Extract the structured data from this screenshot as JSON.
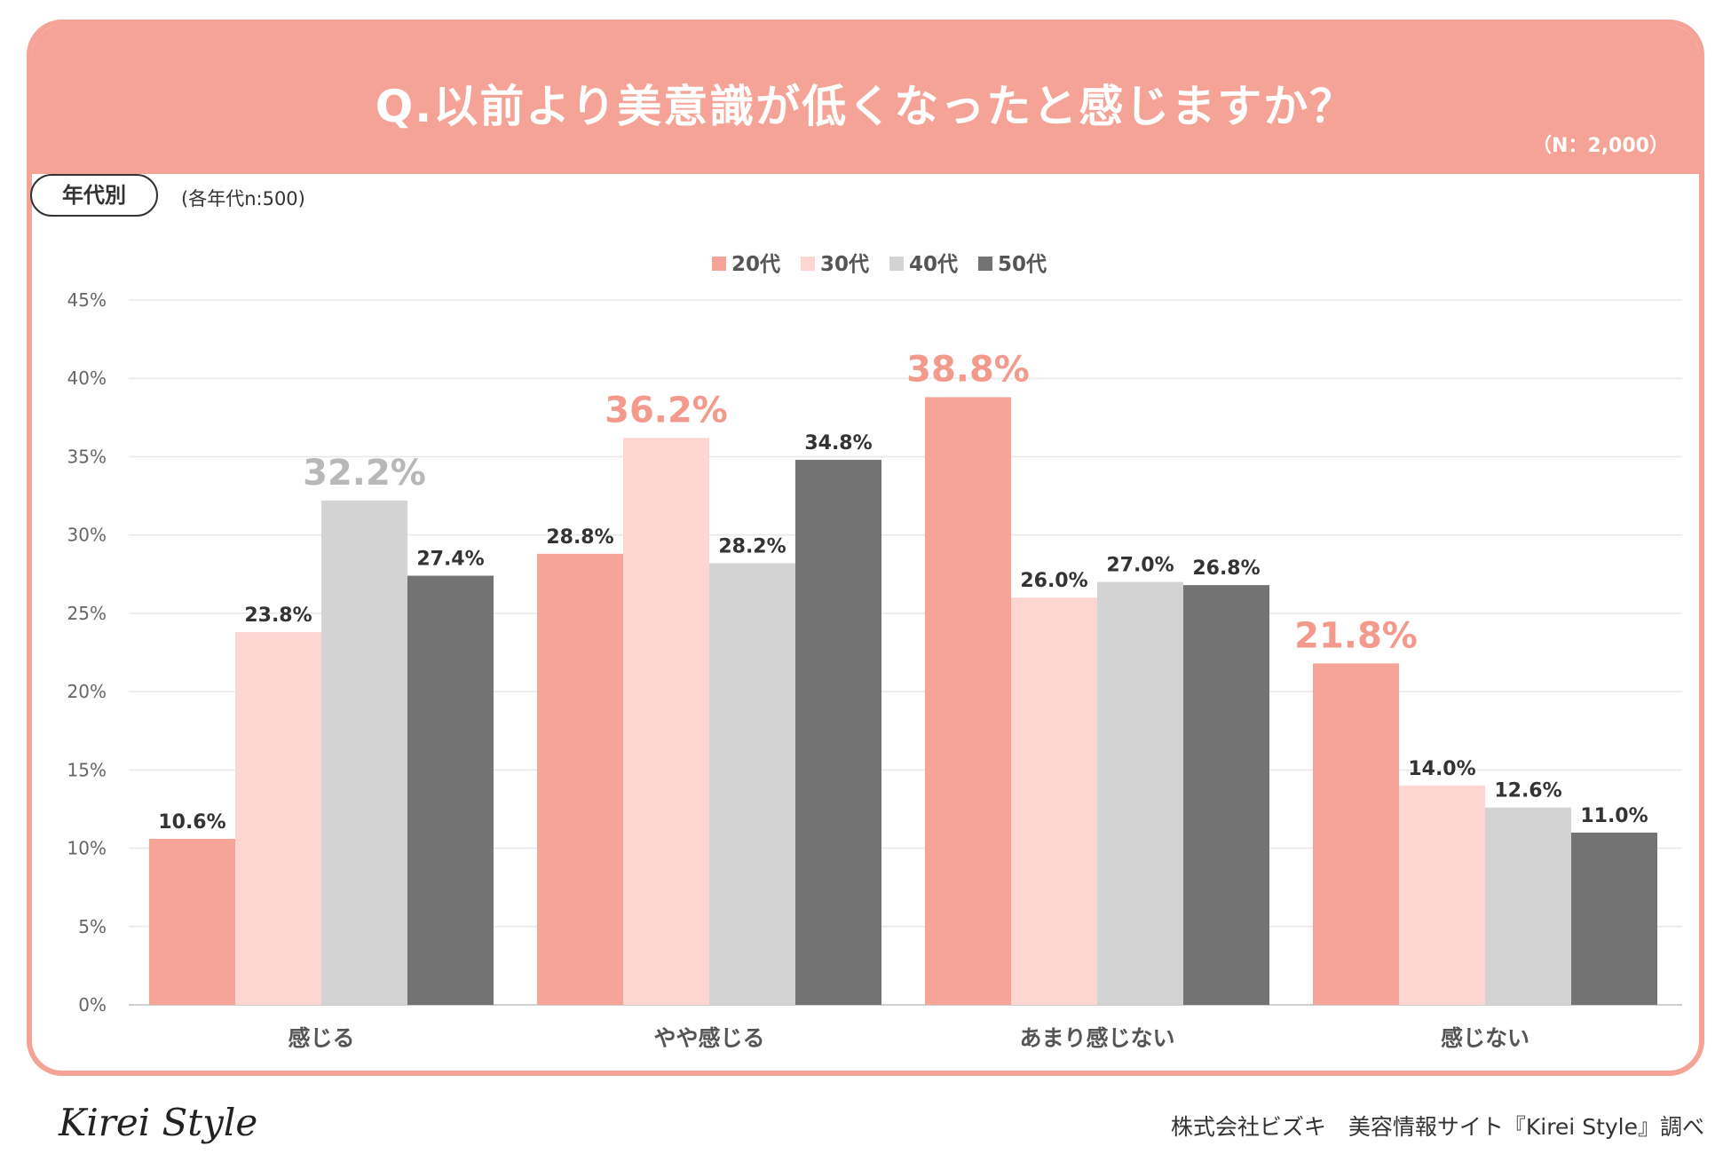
{
  "header": {
    "title": "Q.以前より美意識が低くなったと感じますか？",
    "sample_note": "（N：2,000）"
  },
  "filter": {
    "badge": "年代別",
    "note": "(各年代n:500)"
  },
  "colors": {
    "header_bg": "#f5a396",
    "series": [
      "#f6a498",
      "#fdd5d1",
      "#d3d3d3",
      "#737373"
    ],
    "highlight": [
      "#f39a8d",
      "#f39a8d",
      "#b8b8b8",
      "#f39a8d"
    ]
  },
  "chart_data": {
    "type": "bar",
    "title": "Q.以前より美意識が低くなったと感じますか？",
    "categories": [
      "感じる",
      "やや感じる",
      "あまり感じない",
      "感じない"
    ],
    "series": [
      {
        "name": "20代",
        "values": [
          10.6,
          28.8,
          38.8,
          21.8
        ]
      },
      {
        "name": "30代",
        "values": [
          23.8,
          36.2,
          26.0,
          14.0
        ]
      },
      {
        "name": "40代",
        "values": [
          32.2,
          28.2,
          27.0,
          12.6
        ]
      },
      {
        "name": "50代",
        "values": [
          27.4,
          34.8,
          26.8,
          11.0
        ]
      }
    ],
    "value_labels": [
      [
        "10.6%",
        "28.8%",
        "38.8%",
        "21.8%"
      ],
      [
        "23.8%",
        "36.2%",
        "26.0%",
        "14.0%"
      ],
      [
        "32.2%",
        "28.2%",
        "27.0%",
        "12.6%"
      ],
      [
        "27.4%",
        "34.8%",
        "26.8%",
        "11.0%"
      ]
    ],
    "highlighted": [
      [
        2,
        0
      ],
      [
        1,
        1
      ],
      [
        0,
        2
      ],
      [
        3,
        0
      ]
    ],
    "ylim": [
      0,
      45
    ],
    "yticks": [
      0,
      5,
      10,
      15,
      20,
      25,
      30,
      35,
      40,
      45
    ],
    "ytick_labels": [
      "0%",
      "5%",
      "10%",
      "15%",
      "20%",
      "25%",
      "30%",
      "35%",
      "40%",
      "45%"
    ],
    "legend_position": "top-center",
    "grid": true,
    "xlabel": "",
    "ylabel": ""
  },
  "footer": {
    "logo": "Kirei Style",
    "credit": "株式会社ビズキ　美容情報サイト『Kirei Style』調べ"
  }
}
